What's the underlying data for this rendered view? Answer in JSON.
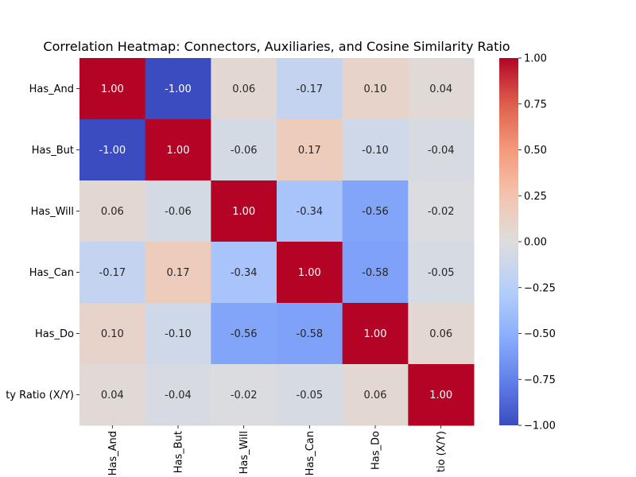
{
  "chart_data": {
    "type": "heatmap",
    "title": "Correlation Heatmap: Connectors, Auxiliaries, and Cosine Similarity Ratio",
    "row_labels": [
      "Has_And",
      "Has_But",
      "Has_Will",
      "Has_Can",
      "Has_Do",
      "ty Ratio (X/Y)"
    ],
    "col_labels": [
      "Has_And",
      "Has_But",
      "Has_Will",
      "Has_Can",
      "Has_Do",
      "tio (X/Y)"
    ],
    "values": [
      [
        1.0,
        -1.0,
        0.06,
        -0.17,
        0.1,
        0.04
      ],
      [
        -1.0,
        1.0,
        -0.06,
        0.17,
        -0.1,
        -0.04
      ],
      [
        0.06,
        -0.06,
        1.0,
        -0.34,
        -0.56,
        -0.02
      ],
      [
        -0.17,
        0.17,
        -0.34,
        1.0,
        -0.58,
        -0.05
      ],
      [
        0.1,
        -0.1,
        -0.56,
        -0.58,
        1.0,
        0.06
      ],
      [
        0.04,
        -0.04,
        -0.02,
        -0.05,
        0.06,
        1.0
      ]
    ],
    "cell_labels": [
      [
        "1.00",
        "-1.00",
        "0.06",
        "-0.17",
        "0.10",
        "0.04"
      ],
      [
        "-1.00",
        "1.00",
        "-0.06",
        "0.17",
        "-0.10",
        "-0.04"
      ],
      [
        "0.06",
        "-0.06",
        "1.00",
        "-0.34",
        "-0.56",
        "-0.02"
      ],
      [
        "-0.17",
        "0.17",
        "-0.34",
        "1.00",
        "-0.58",
        "-0.05"
      ],
      [
        "0.10",
        "-0.10",
        "-0.56",
        "-0.58",
        "1.00",
        "0.06"
      ],
      [
        "0.04",
        "-0.04",
        "-0.02",
        "-0.05",
        "0.06",
        "1.00"
      ]
    ],
    "colormap": "coolwarm",
    "vmin": -1.0,
    "vmax": 1.0,
    "colorbar_ticks": [
      1.0,
      0.75,
      0.5,
      0.25,
      0.0,
      -0.25,
      -0.5,
      -0.75,
      -1.0
    ],
    "colorbar_tick_labels": [
      "1.00",
      "0.75",
      "0.50",
      "0.25",
      "0.00",
      "−0.25",
      "−0.50",
      "−0.75",
      "−1.00"
    ],
    "grid": false
  }
}
